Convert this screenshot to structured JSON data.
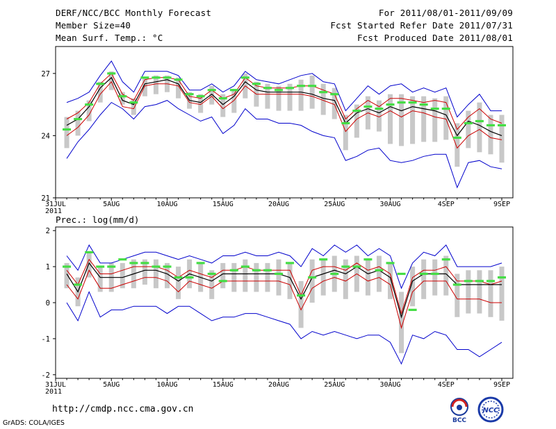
{
  "header": {
    "left": [
      "DERF/NCC/BCC Monthly Forecast",
      "Member Size=40",
      "Mean Surf. Temp.: °C"
    ],
    "right": [
      "For 2011/08/01-2011/09/09",
      "Fcst Started Refer Date 2011/07/31",
      "Fcst Produced Date 2011/08/01"
    ]
  },
  "precip_title": "Prec.: log(mm/d)",
  "footer": {
    "url": "http://cmdp.ncc.cma.gov.cn",
    "grads": "GrADS: COLA/IGES"
  },
  "logos": [
    {
      "icon": "bcc-logo-icon",
      "text": "BCC"
    },
    {
      "icon": "ncc-logo-icon",
      "text": "NCC"
    }
  ],
  "colors": {
    "box": "#c8c8c8",
    "max_min": "#0000cc",
    "spread": "#cc0000",
    "mean": "#000000",
    "obs": "#44dd44"
  },
  "chart_data": [
    {
      "type": "line",
      "title": "Mean Surf. Temp.: °C",
      "x_tick_labels": [
        "31JUL\n2011",
        "5AUG",
        "10AUG",
        "15AUG",
        "20AUG",
        "25AUG",
        "30AUG",
        "4SEP",
        "9SEP"
      ],
      "x_tick_days": [
        0,
        5,
        10,
        15,
        20,
        25,
        30,
        35,
        40
      ],
      "ylim": [
        21,
        28.3
      ],
      "yticks": [
        21,
        24,
        27
      ],
      "days": [
        1,
        2,
        3,
        4,
        5,
        6,
        7,
        8,
        9,
        10,
        11,
        12,
        13,
        14,
        15,
        16,
        17,
        18,
        19,
        20,
        21,
        22,
        23,
        24,
        25,
        26,
        27,
        28,
        29,
        30,
        31,
        32,
        33,
        34,
        35,
        36,
        37,
        38,
        39,
        40
      ],
      "series": [
        {
          "name": "ensemble max",
          "values": [
            25.6,
            25.8,
            26.1,
            26.9,
            27.6,
            26.6,
            26.1,
            27.1,
            27.1,
            27.1,
            26.9,
            26.2,
            26.2,
            26.5,
            26.1,
            26.4,
            27.1,
            26.7,
            26.6,
            26.5,
            26.7,
            26.9,
            27.0,
            26.6,
            26.5,
            25.2,
            25.8,
            26.4,
            26.0,
            26.4,
            26.5,
            26.1,
            26.3,
            26.1,
            26.3,
            24.9,
            25.5,
            26.0,
            25.2,
            25.2
          ]
        },
        {
          "name": "upper spread",
          "values": [
            24.8,
            25.1,
            25.6,
            26.5,
            27.0,
            26.0,
            25.7,
            26.7,
            26.8,
            26.8,
            26.7,
            25.9,
            25.8,
            26.2,
            25.8,
            26.0,
            26.8,
            26.4,
            26.3,
            26.3,
            26.3,
            26.4,
            26.4,
            26.2,
            26.0,
            24.8,
            25.3,
            25.7,
            25.4,
            25.8,
            25.8,
            25.7,
            25.6,
            25.7,
            25.6,
            24.3,
            24.9,
            25.3,
            24.8,
            24.6
          ]
        },
        {
          "name": "ensemble mean",
          "values": [
            24.5,
            24.8,
            25.4,
            26.3,
            26.8,
            25.7,
            25.5,
            26.5,
            26.6,
            26.7,
            26.5,
            25.7,
            25.6,
            26.0,
            25.5,
            25.9,
            26.6,
            26.2,
            26.1,
            26.1,
            26.1,
            26.1,
            26.0,
            25.8,
            25.7,
            24.6,
            25.1,
            25.3,
            25.1,
            25.4,
            25.2,
            25.4,
            25.3,
            25.2,
            25.0,
            24.0,
            24.7,
            24.5,
            24.2,
            24.0
          ]
        },
        {
          "name": "lower spread",
          "values": [
            24.0,
            24.4,
            25.0,
            26.0,
            26.6,
            25.4,
            25.3,
            26.4,
            26.5,
            26.5,
            26.4,
            25.6,
            25.5,
            25.9,
            25.3,
            25.7,
            26.4,
            26.0,
            26.0,
            26.0,
            26.0,
            26.0,
            25.9,
            25.7,
            25.5,
            24.2,
            24.8,
            25.1,
            24.9,
            25.2,
            24.9,
            25.2,
            25.1,
            24.9,
            24.8,
            23.4,
            24.0,
            24.3,
            23.9,
            23.8
          ]
        },
        {
          "name": "ensemble min",
          "values": [
            22.9,
            23.7,
            24.3,
            25.0,
            25.6,
            25.3,
            24.8,
            25.4,
            25.5,
            25.7,
            25.3,
            25.0,
            24.7,
            24.9,
            24.1,
            24.5,
            25.3,
            24.8,
            24.8,
            24.6,
            24.6,
            24.5,
            24.2,
            24.0,
            23.9,
            22.8,
            23.0,
            23.3,
            23.4,
            22.8,
            22.7,
            22.8,
            23.0,
            23.1,
            23.1,
            21.5,
            22.7,
            22.8,
            22.5,
            22.4
          ]
        },
        {
          "name": "box top",
          "values": [
            24.9,
            25.2,
            25.7,
            26.6,
            27.1,
            26.1,
            25.8,
            26.8,
            26.9,
            26.9,
            26.8,
            26.1,
            26.0,
            26.4,
            26.0,
            26.2,
            27.0,
            26.6,
            26.5,
            26.4,
            26.5,
            26.7,
            26.9,
            26.5,
            26.3,
            25.0,
            25.5,
            25.9,
            25.7,
            26.0,
            26.0,
            25.9,
            25.9,
            25.8,
            25.9,
            24.6,
            25.2,
            25.6,
            25.0,
            25.0
          ]
        },
        {
          "name": "box bottom",
          "values": [
            23.4,
            24.0,
            24.7,
            25.6,
            26.2,
            25.5,
            25.0,
            25.9,
            26.0,
            26.1,
            25.8,
            25.3,
            25.1,
            25.5,
            24.9,
            25.1,
            25.8,
            25.4,
            25.3,
            25.2,
            25.2,
            25.2,
            25.3,
            25.0,
            24.8,
            23.3,
            23.9,
            24.3,
            24.2,
            23.6,
            23.5,
            23.6,
            23.7,
            23.7,
            23.8,
            22.5,
            23.4,
            23.2,
            23.1,
            22.7
          ]
        },
        {
          "name": "observed/forecast marker",
          "values": [
            24.3,
            24.8,
            25.5,
            26.5,
            27.0,
            25.9,
            25.6,
            26.8,
            26.8,
            26.8,
            26.7,
            26.0,
            25.9,
            26.2,
            25.8,
            26.2,
            26.8,
            26.5,
            26.3,
            26.2,
            26.3,
            26.4,
            26.4,
            26.1,
            26.0,
            24.6,
            25.2,
            25.4,
            25.3,
            25.5,
            25.6,
            25.6,
            25.5,
            25.3,
            25.3,
            23.9,
            24.6,
            24.7,
            24.5,
            24.5
          ]
        }
      ]
    },
    {
      "type": "line",
      "title": "Prec.: log(mm/d)",
      "x_tick_labels": [
        "31JUL\n2011",
        "5AUG",
        "10AUG",
        "15AUG",
        "20AUG",
        "25AUG",
        "30AUG",
        "4SEP",
        "9SEP"
      ],
      "x_tick_days": [
        0,
        5,
        10,
        15,
        20,
        25,
        30,
        35,
        40
      ],
      "ylim": [
        -2.1,
        2.1
      ],
      "yticks": [
        -2,
        -1,
        0,
        1,
        2
      ],
      "days": [
        1,
        2,
        3,
        4,
        5,
        6,
        7,
        8,
        9,
        10,
        11,
        12,
        13,
        14,
        15,
        16,
        17,
        18,
        19,
        20,
        21,
        22,
        23,
        24,
        25,
        26,
        27,
        28,
        29,
        30,
        31,
        32,
        33,
        34,
        35,
        36,
        37,
        38,
        39,
        40
      ],
      "series": [
        {
          "name": "ensemble max",
          "values": [
            1.3,
            0.9,
            1.6,
            1.1,
            1.1,
            1.2,
            1.3,
            1.4,
            1.4,
            1.3,
            1.2,
            1.3,
            1.2,
            1.1,
            1.3,
            1.3,
            1.4,
            1.3,
            1.3,
            1.4,
            1.3,
            1.0,
            1.5,
            1.3,
            1.6,
            1.4,
            1.6,
            1.3,
            1.5,
            1.3,
            0.4,
            1.1,
            1.4,
            1.3,
            1.6,
            1.0,
            1.0,
            1.0,
            1.0,
            1.1
          ]
        },
        {
          "name": "upper spread",
          "values": [
            0.9,
            0.5,
            1.2,
            0.8,
            0.8,
            0.9,
            1.0,
            1.0,
            1.0,
            0.9,
            0.7,
            0.9,
            0.8,
            0.7,
            0.9,
            0.9,
            1.0,
            0.9,
            0.9,
            0.9,
            0.9,
            0.2,
            0.9,
            1.0,
            1.0,
            0.9,
            1.1,
            0.9,
            1.0,
            0.8,
            -0.3,
            0.7,
            0.9,
            0.9,
            1.0,
            0.6,
            0.6,
            0.6,
            0.5,
            0.6
          ]
        },
        {
          "name": "ensemble mean",
          "values": [
            0.8,
            0.3,
            1.1,
            0.7,
            0.7,
            0.7,
            0.8,
            0.9,
            0.9,
            0.8,
            0.6,
            0.8,
            0.7,
            0.6,
            0.8,
            0.8,
            0.8,
            0.8,
            0.8,
            0.8,
            0.7,
            0.1,
            0.7,
            0.8,
            0.9,
            0.8,
            1.0,
            0.8,
            0.9,
            0.7,
            -0.4,
            0.6,
            0.8,
            0.8,
            0.8,
            0.5,
            0.5,
            0.5,
            0.5,
            0.5
          ]
        },
        {
          "name": "lower spread",
          "values": [
            0.5,
            0.1,
            0.9,
            0.4,
            0.4,
            0.5,
            0.6,
            0.7,
            0.7,
            0.6,
            0.3,
            0.6,
            0.5,
            0.4,
            0.6,
            0.6,
            0.6,
            0.6,
            0.6,
            0.6,
            0.5,
            -0.2,
            0.4,
            0.6,
            0.7,
            0.6,
            0.8,
            0.6,
            0.7,
            0.5,
            -0.7,
            0.3,
            0.6,
            0.6,
            0.6,
            0.1,
            0.1,
            0.1,
            0.0,
            0.0
          ]
        },
        {
          "name": "ensemble min",
          "values": [
            0.0,
            -0.5,
            0.3,
            -0.4,
            -0.2,
            -0.2,
            -0.1,
            -0.1,
            -0.1,
            -0.3,
            -0.1,
            -0.1,
            -0.3,
            -0.5,
            -0.4,
            -0.4,
            -0.3,
            -0.3,
            -0.4,
            -0.5,
            -0.6,
            -1.0,
            -0.8,
            -0.9,
            -0.8,
            -0.9,
            -1.0,
            -0.9,
            -0.9,
            -1.1,
            -1.7,
            -0.9,
            -1.0,
            -0.8,
            -0.9,
            -1.3,
            -1.3,
            -1.5,
            -1.3,
            -1.1
          ]
        },
        {
          "name": "box top",
          "values": [
            1.1,
            0.7,
            1.4,
            1.0,
            1.1,
            1.1,
            1.2,
            1.2,
            1.2,
            1.1,
            1.0,
            1.2,
            1.1,
            0.9,
            1.1,
            1.1,
            1.2,
            1.1,
            1.1,
            1.2,
            1.1,
            0.6,
            1.2,
            1.2,
            1.3,
            1.2,
            1.3,
            1.2,
            1.3,
            1.1,
            0.3,
            1.0,
            1.2,
            1.2,
            1.3,
            0.8,
            0.9,
            0.9,
            0.9,
            1.0
          ]
        },
        {
          "name": "box bottom",
          "values": [
            0.4,
            -0.1,
            0.7,
            0.3,
            0.3,
            0.4,
            0.4,
            0.5,
            0.4,
            0.4,
            0.1,
            0.4,
            0.3,
            0.1,
            0.4,
            0.3,
            0.3,
            0.3,
            0.3,
            0.2,
            0.1,
            -0.7,
            0.0,
            0.2,
            0.3,
            0.1,
            0.3,
            0.2,
            0.3,
            0.1,
            -1.4,
            -0.1,
            0.1,
            0.2,
            0.2,
            -0.4,
            -0.3,
            -0.3,
            -0.4,
            -0.5
          ]
        },
        {
          "name": "observed/forecast marker",
          "values": [
            1.0,
            0.5,
            1.4,
            1.0,
            1.0,
            1.2,
            1.1,
            1.1,
            1.0,
            1.0,
            0.7,
            0.7,
            1.1,
            0.8,
            0.6,
            0.9,
            1.0,
            0.9,
            0.9,
            0.8,
            1.1,
            0.2,
            0.7,
            1.2,
            0.8,
            1.0,
            1.0,
            1.2,
            0.9,
            1.1,
            0.8,
            -0.2,
            0.8,
            0.8,
            1.2,
            0.5,
            0.6,
            0.6,
            0.6,
            0.7
          ]
        }
      ]
    }
  ]
}
